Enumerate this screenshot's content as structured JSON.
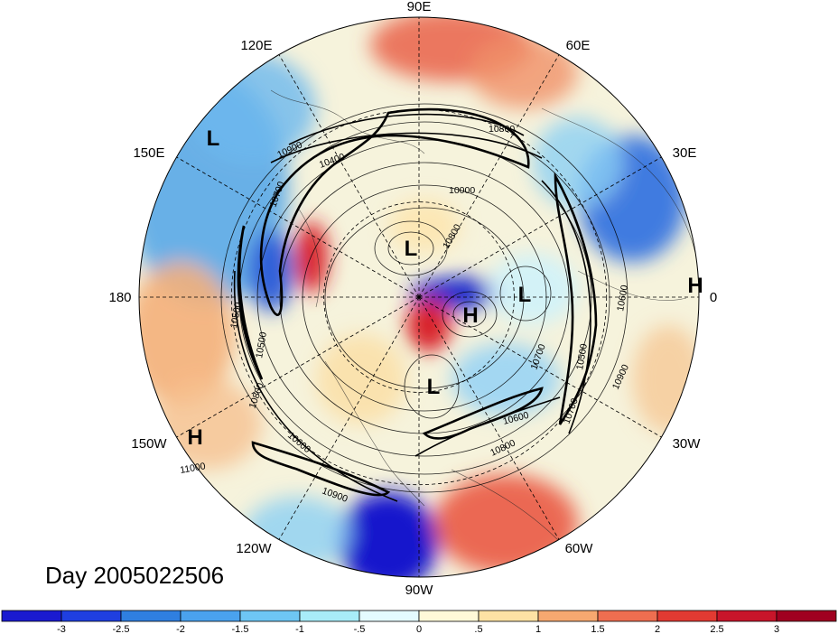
{
  "title": "Day 2005022506",
  "longitude_labels": [
    "90E",
    "60E",
    "30E",
    "0",
    "30W",
    "60W",
    "90W",
    "120W",
    "150W",
    "180",
    "150E",
    "120E"
  ],
  "pressure_centers": [
    {
      "label": "L"
    },
    {
      "label": "L"
    },
    {
      "label": "L"
    },
    {
      "label": "L"
    },
    {
      "label": "H"
    },
    {
      "label": "H"
    },
    {
      "label": "H"
    }
  ],
  "contour_labels": [
    "10800",
    "10900",
    "10400",
    "10000",
    "10700",
    "10500",
    "10800",
    "10600",
    "10900",
    "11000",
    "10600",
    "10800",
    "10500",
    "10700",
    "10600",
    "10900",
    "10800",
    "10500",
    "10700"
  ],
  "colorbar": {
    "tick_labels": [
      "-3",
      "-2.5",
      "-2",
      "-1.5",
      "-1",
      "-.5",
      "0",
      ".5",
      "1",
      "1.5",
      "2",
      "2.5",
      "3"
    ],
    "colors": [
      "#1a1ad0",
      "#1f3fe0",
      "#2f7fe0",
      "#4aa2ee",
      "#6ec6f4",
      "#a8ecf8",
      "#e4fbff",
      "#fff9d8",
      "#fde2a4",
      "#f6a870",
      "#ee6e50",
      "#e23a32",
      "#c8152a",
      "#a00020"
    ]
  }
}
